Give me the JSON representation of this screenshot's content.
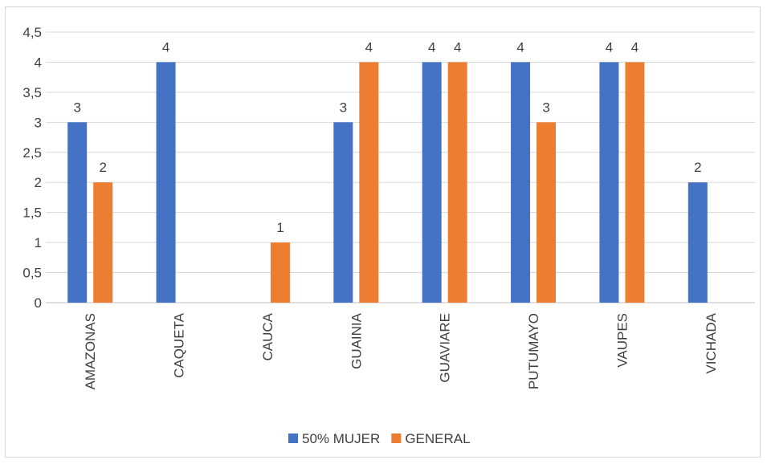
{
  "chart_data": {
    "type": "bar",
    "title": "",
    "xlabel": "",
    "ylabel": "",
    "categories": [
      "AMAZONAS",
      "CAQUETA",
      "CAUCA",
      "GUAINIA",
      "GUAVIARE",
      "PUTUMAYO",
      "VAUPES",
      "VICHADA"
    ],
    "series": [
      {
        "name": "50% MUJER",
        "color": "#4472C4",
        "values": [
          3,
          4,
          null,
          3,
          4,
          4,
          4,
          2
        ]
      },
      {
        "name": "GENERAL",
        "color": "#ED7D31",
        "values": [
          2,
          null,
          1,
          4,
          4,
          3,
          4,
          null
        ]
      }
    ],
    "ylim": [
      0,
      4.5
    ],
    "yticks": [
      "0",
      "0,5",
      "1",
      "1,5",
      "2",
      "2,5",
      "3",
      "3,5",
      "4",
      "4,5"
    ],
    "grid": true,
    "legend_position": "bottom",
    "data_labels": true
  }
}
